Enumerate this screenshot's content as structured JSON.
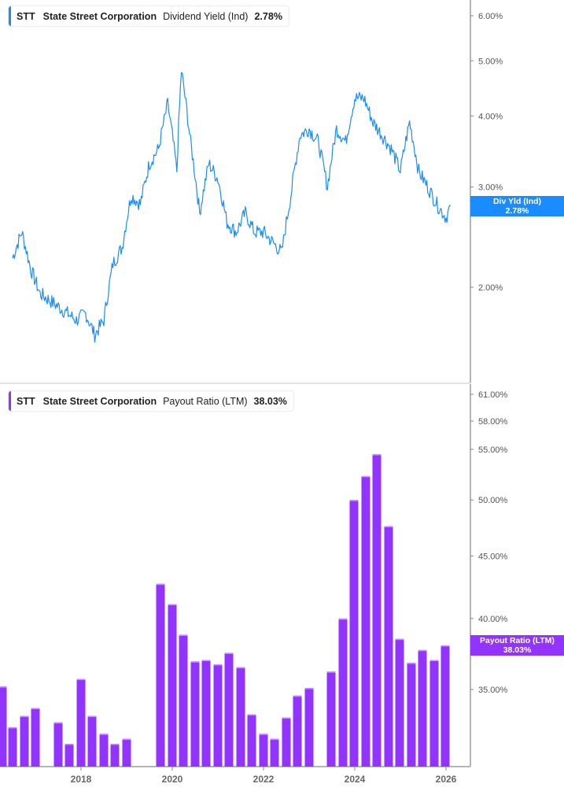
{
  "top_panel": {
    "legend": {
      "ticker": "STT",
      "company": "State Street Corporation",
      "metric": "Dividend Yield (Ind)",
      "value": "2.78%",
      "color": "#1a8cff"
    },
    "tag": {
      "label": "Div Yld (Ind)",
      "value": "2.78%",
      "color": "#1a8cff"
    },
    "y_ticks": [
      "6.00%",
      "5.00%",
      "4.00%",
      "3.00%",
      "2.00%"
    ]
  },
  "bottom_panel": {
    "legend": {
      "ticker": "STT",
      "company": "State Street Corporation",
      "metric": "Payout Ratio (LTM)",
      "value": "38.03%",
      "color": "#9333ff"
    },
    "tag": {
      "label": "Payout Ratio (LTM)",
      "value": "38.03%",
      "color": "#9333ff"
    },
    "y_ticks": [
      "61.00%",
      "58.00%",
      "55.00%",
      "50.00%",
      "45.00%",
      "40.00%",
      "35.00%"
    ]
  },
  "x_axis": {
    "labels": [
      "2018",
      "2020",
      "2022",
      "2024",
      "2026"
    ]
  },
  "chart_data": [
    {
      "type": "line",
      "title": "STT State Street Corporation Dividend Yield (Ind)",
      "ylabel": "Dividend Yield (Ind)",
      "yscale": "log",
      "ylim": [
        1.6,
        6.2
      ],
      "y_ticks": [
        2.0,
        3.0,
        4.0,
        5.0,
        6.0
      ],
      "x": [
        2016.5,
        2016.7,
        2016.9,
        2017.1,
        2017.3,
        2017.5,
        2017.7,
        2017.9,
        2018.1,
        2018.3,
        2018.5,
        2018.7,
        2018.9,
        2019.1,
        2019.3,
        2019.5,
        2019.7,
        2019.9,
        2020.1,
        2020.2,
        2020.4,
        2020.6,
        2020.8,
        2021.0,
        2021.2,
        2021.4,
        2021.6,
        2021.8,
        2022.0,
        2022.2,
        2022.4,
        2022.6,
        2022.8,
        2023.0,
        2023.2,
        2023.4,
        2023.6,
        2023.8,
        2024.0,
        2024.2,
        2024.4,
        2024.6,
        2024.8,
        2025.0,
        2025.2,
        2025.4,
        2025.6,
        2025.8,
        2026.0,
        2026.1
      ],
      "values": [
        2.25,
        2.5,
        2.15,
        1.95,
        1.9,
        1.85,
        1.8,
        1.75,
        1.8,
        1.65,
        1.75,
        2.2,
        2.35,
        2.9,
        2.8,
        3.3,
        3.5,
        4.2,
        3.2,
        4.8,
        3.6,
        2.7,
        3.3,
        3.1,
        2.6,
        2.5,
        2.7,
        2.5,
        2.5,
        2.4,
        2.3,
        2.9,
        3.7,
        3.8,
        3.6,
        3.0,
        3.8,
        3.6,
        4.3,
        4.3,
        3.9,
        3.7,
        3.5,
        3.2,
        3.9,
        3.2,
        3.0,
        2.8,
        2.65,
        2.78
      ],
      "last_value": 2.78
    },
    {
      "type": "bar",
      "title": "STT State Street Corporation Payout Ratio (LTM)",
      "ylabel": "Payout Ratio (LTM)",
      "yscale": "log",
      "ylim": [
        30.5,
        61.0
      ],
      "y_ticks": [
        35.0,
        40.0,
        45.0,
        50.0,
        55.0,
        58.0,
        61.0
      ],
      "series": [
        {
          "name": "Payout Ratio (LTM)",
          "bars": [
            {
              "x": 3,
              "value": 35.2
            },
            {
              "x": 16,
              "value": 32.6
            },
            {
              "x": 31,
              "value": 33.3
            },
            {
              "x": 45,
              "value": 33.8
            },
            {
              "x": 74,
              "value": 32.9
            },
            {
              "x": 88,
              "value": 31.6
            },
            {
              "x": 103,
              "value": 35.7
            },
            {
              "x": 117,
              "value": 33.3
            },
            {
              "x": 132,
              "value": 32.2
            },
            {
              "x": 146,
              "value": 31.6
            },
            {
              "x": 161,
              "value": 31.9
            },
            {
              "x": 204,
              "value": 42.7
            },
            {
              "x": 219,
              "value": 41.1
            },
            {
              "x": 233,
              "value": 38.8
            },
            {
              "x": 248,
              "value": 36.9
            },
            {
              "x": 262,
              "value": 37.0
            },
            {
              "x": 277,
              "value": 36.7
            },
            {
              "x": 291,
              "value": 37.5
            },
            {
              "x": 306,
              "value": 36.5
            },
            {
              "x": 320,
              "value": 33.4
            },
            {
              "x": 335,
              "value": 32.2
            },
            {
              "x": 349,
              "value": 31.9
            },
            {
              "x": 364,
              "value": 33.2
            },
            {
              "x": 378,
              "value": 34.6
            },
            {
              "x": 393,
              "value": 35.1
            },
            {
              "x": 421,
              "value": 36.2
            },
            {
              "x": 436,
              "value": 40.0
            },
            {
              "x": 450,
              "value": 50.0
            },
            {
              "x": 465,
              "value": 52.3
            },
            {
              "x": 479,
              "value": 54.5
            },
            {
              "x": 494,
              "value": 47.6
            },
            {
              "x": 508,
              "value": 38.5
            },
            {
              "x": 523,
              "value": 36.8
            },
            {
              "x": 537,
              "value": 37.7
            },
            {
              "x": 552,
              "value": 37.0
            },
            {
              "x": 566,
              "value": 38.03
            }
          ]
        }
      ],
      "last_value": 38.03
    }
  ]
}
